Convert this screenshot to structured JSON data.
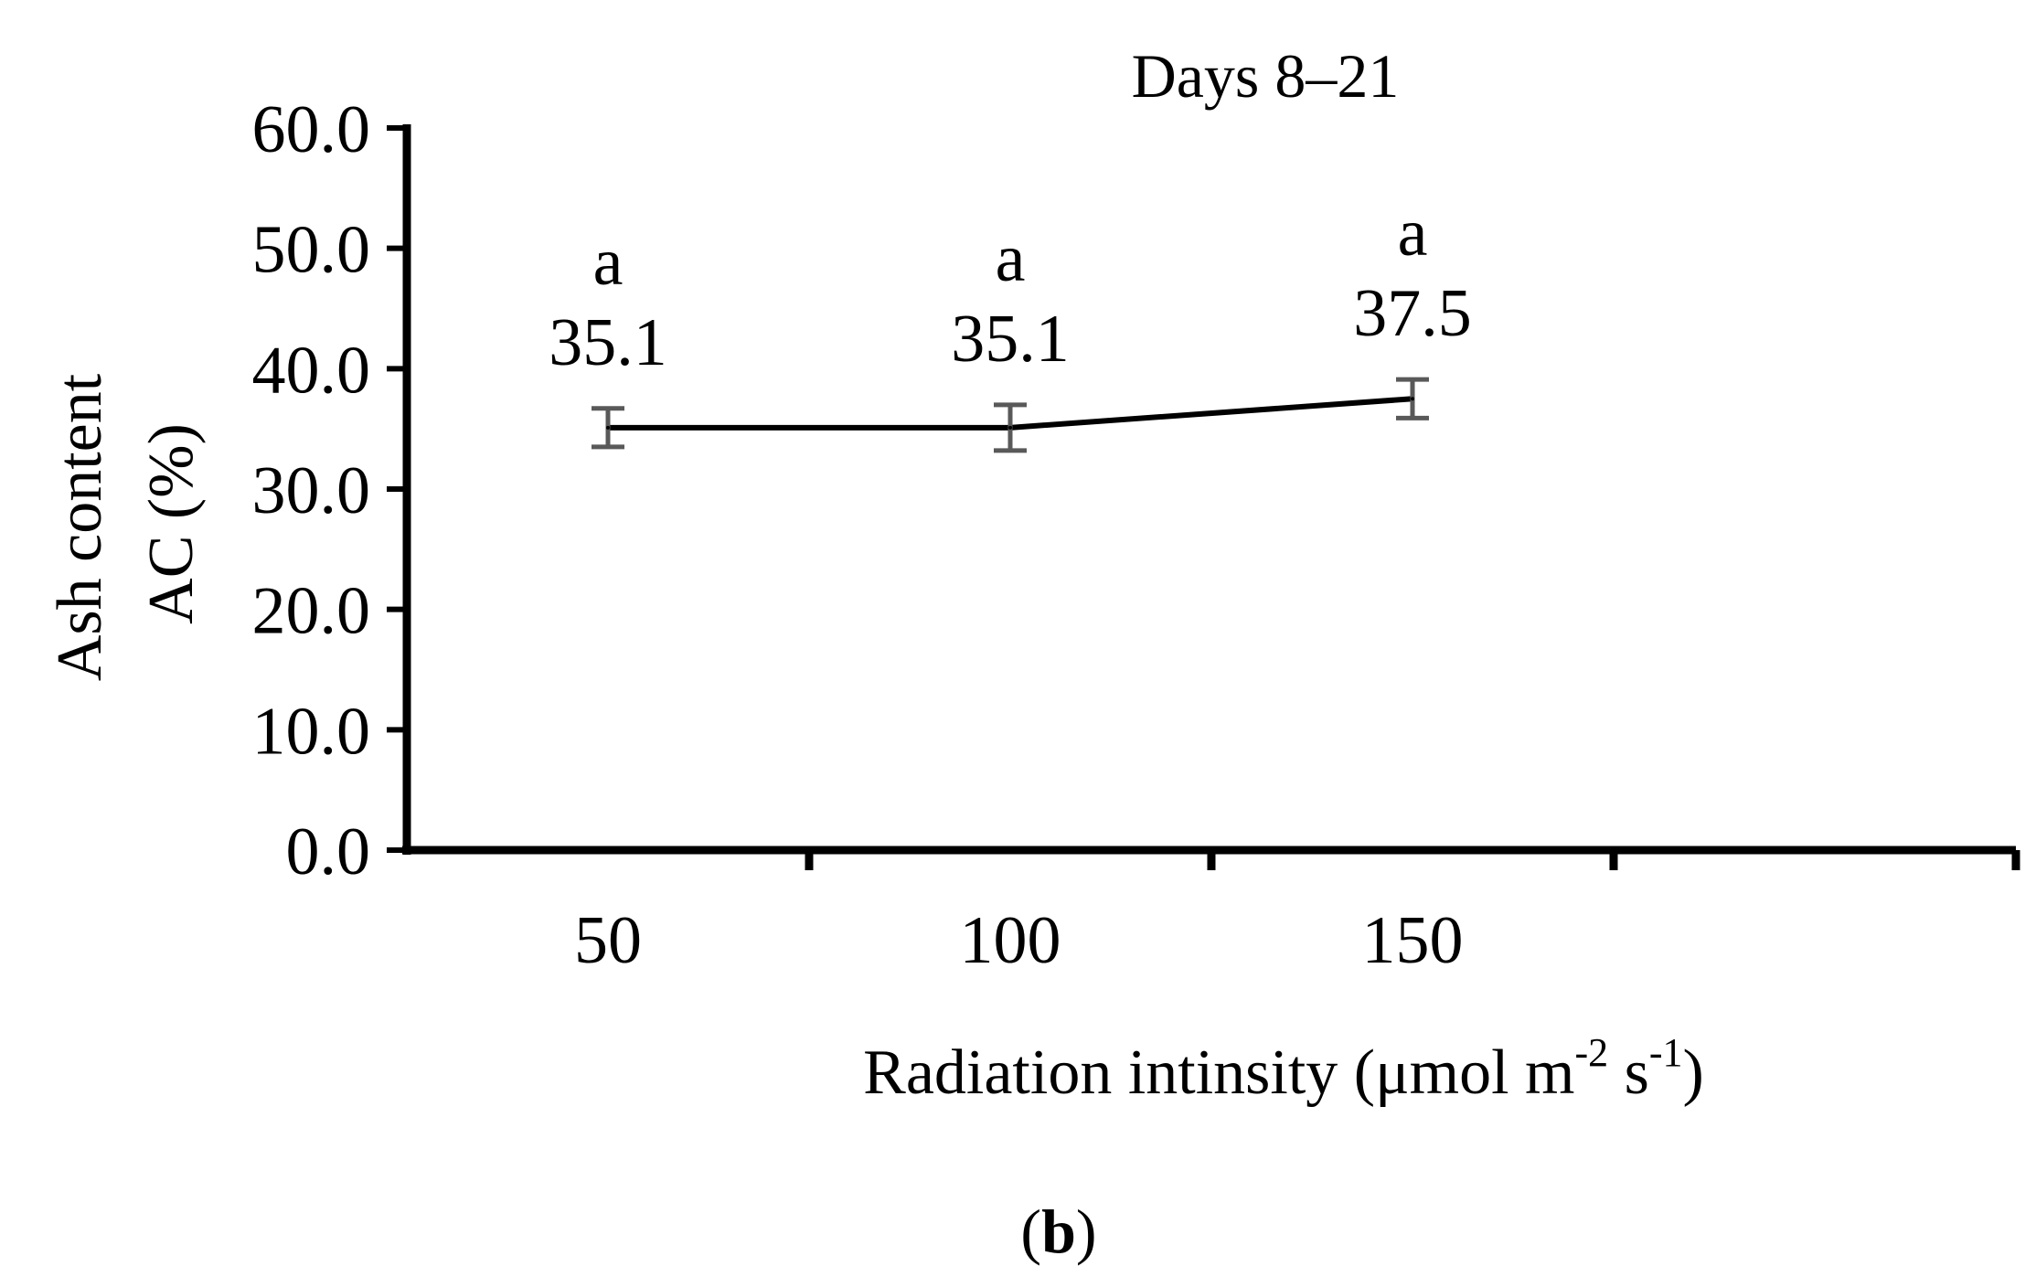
{
  "chart_data": {
    "type": "line",
    "title": "Days 8–21",
    "xlabel": "Radiation intinsity (μmol m⁻² s⁻¹)",
    "xlabel_parts": {
      "main": "Radiation intinsity (μmol m",
      "sup1": "-2",
      "mid": " s",
      "sup2": "-1",
      "end": ")"
    },
    "ylabel_lines": [
      "Ash content",
      "AC (%)"
    ],
    "categories": [
      "50",
      "100",
      "150"
    ],
    "series": [
      {
        "name": "AC",
        "values": [
          35.1,
          35.1,
          37.5
        ],
        "value_labels": [
          "35.1",
          "35.1",
          "37.5"
        ],
        "error": [
          1.6,
          1.9,
          1.6
        ],
        "significance": [
          "a",
          "a",
          "a"
        ]
      }
    ],
    "ylim": [
      0,
      60
    ],
    "yticks": [
      0,
      10,
      20,
      30,
      40,
      50,
      60
    ],
    "ytick_labels": [
      "0.0",
      "10.0",
      "20.0",
      "30.0",
      "40.0",
      "50.0",
      "60.0"
    ],
    "grid": false,
    "legend": "none",
    "line_color": "#000000",
    "error_bar_color": "#595959"
  },
  "panel_label": {
    "open": "(",
    "letter": "b",
    "close": ")"
  }
}
